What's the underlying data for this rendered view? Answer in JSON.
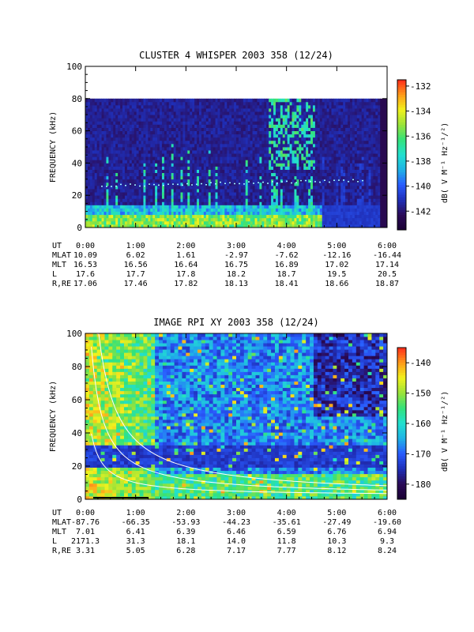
{
  "colors": {
    "spectrogram_scale": [
      "#1a0033",
      "#2b0b57",
      "#1f2fb8",
      "#2a5cff",
      "#1fb3e6",
      "#22e0d0",
      "#33e27a",
      "#9be33a",
      "#f2f21c",
      "#ff9a1a",
      "#ff2a1a"
    ],
    "axis": "#000000",
    "overlay_curves": "#ffffff"
  },
  "chart_data": [
    {
      "type": "heatmap",
      "title": "CLUSTER 4 WHISPER 2003 358 (12/24)",
      "xlabel": "",
      "ylabel": "FREQUENCY (kHz)",
      "xlim": [
        "0:00",
        "6:00"
      ],
      "ylim": [
        0,
        100
      ],
      "xticks": [
        "0:00",
        "1:00",
        "2:00",
        "3:00",
        "4:00",
        "5:00",
        "6:00"
      ],
      "yticks": [
        "0",
        "20",
        "40",
        "60",
        "80",
        "100"
      ],
      "data_ceiling_khz": 80,
      "colorbar": {
        "label": "dB( V M⁻¹ Hz⁻¹/²)",
        "range": [
          -143.5,
          -131.5
        ],
        "ticks": [
          "-132",
          "-134",
          "-136",
          "-138",
          "-140",
          "-142"
        ]
      },
      "ephemeris": {
        "labels": [
          "UT",
          "MLAT",
          "MLT",
          "L",
          "R,RE"
        ],
        "rows": [
          [
            "0:00",
            "1:00",
            "2:00",
            "3:00",
            "4:00",
            "5:00",
            "6:00"
          ],
          [
            "10.09",
            "6.02",
            "1.61",
            "-2.97",
            "-7.62",
            "-12.16",
            "-16.44"
          ],
          [
            "16.53",
            "16.56",
            "16.64",
            "16.75",
            "16.89",
            "17.02",
            "17.14"
          ],
          [
            "17.6",
            "17.7",
            "17.8",
            "18.2",
            "18.7",
            "19.5",
            "20.5"
          ],
          [
            "17.06",
            "17.46",
            "17.82",
            "18.13",
            "18.41",
            "18.66",
            "18.87"
          ]
        ]
      }
    },
    {
      "type": "heatmap",
      "title": "IMAGE RPI XY 2003 358 (12/24)",
      "xlabel": "",
      "ylabel": "FREQUENCY (kHz)",
      "xlim": [
        "0:00",
        "6:00"
      ],
      "ylim": [
        0,
        100
      ],
      "xticks": [
        "0:00",
        "1:00",
        "2:00",
        "3:00",
        "4:00",
        "5:00",
        "6:00"
      ],
      "yticks": [
        "0",
        "20",
        "40",
        "60",
        "80",
        "100"
      ],
      "colorbar": {
        "label": "dB( V M⁻¹ Hz⁻¹/²)",
        "range": [
          -185,
          -135
        ],
        "ticks": [
          "-140",
          "-150",
          "-160",
          "-170",
          "-180"
        ]
      },
      "ephemeris": {
        "labels": [
          "UT",
          "MLAT",
          "MLT",
          "L",
          "R,RE"
        ],
        "rows": [
          [
            "0:00",
            "1:00",
            "2:00",
            "3:00",
            "4:00",
            "5:00",
            "6:00"
          ],
          [
            "-87.76",
            "-66.35",
            "-53.93",
            "-44.23",
            "-35.61",
            "-27.49",
            "-19.60"
          ],
          [
            "7.01",
            "6.41",
            "6.39",
            "6.46",
            "6.59",
            "6.76",
            "6.94"
          ],
          [
            "2171.3",
            "31.3",
            "18.1",
            "14.0",
            "11.8",
            "10.3",
            "9.3"
          ],
          [
            "3.31",
            "5.05",
            "6.28",
            "7.17",
            "7.77",
            "8.12",
            "8.24"
          ]
        ]
      }
    }
  ]
}
